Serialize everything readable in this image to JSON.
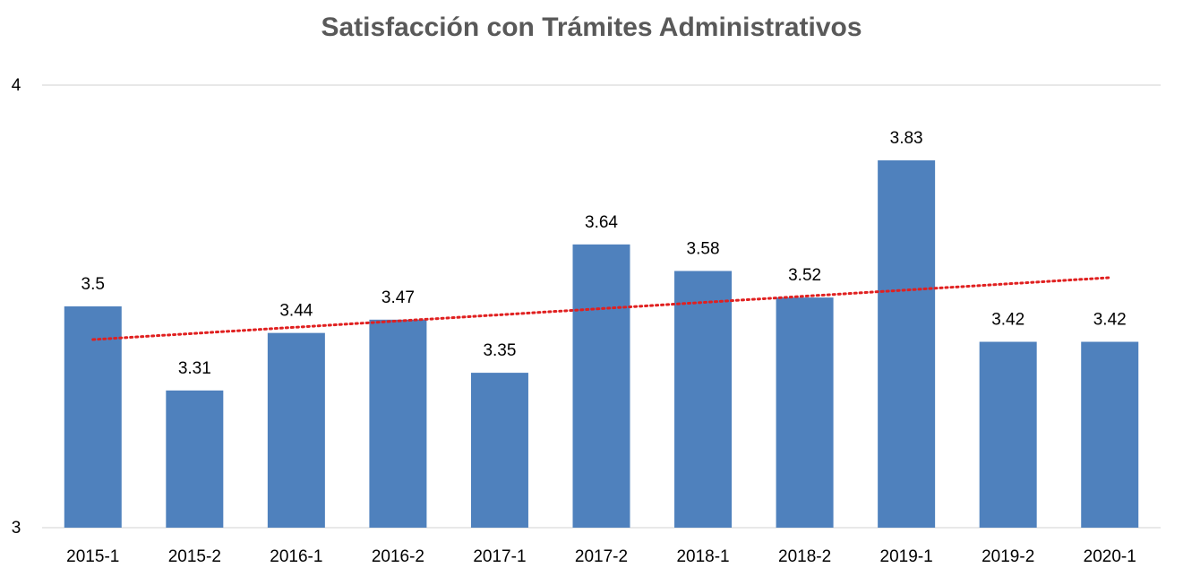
{
  "chart_data": {
    "type": "bar",
    "title": "Satisfacción con Trámites Administrativos",
    "categories": [
      "2015-1",
      "2015-2",
      "2016-1",
      "2016-2",
      "2017-1",
      "2017-2",
      "2018-1",
      "2018-2",
      "2019-1",
      "2019-2",
      "2020-1"
    ],
    "values": [
      3.5,
      3.31,
      3.44,
      3.47,
      3.35,
      3.64,
      3.58,
      3.52,
      3.83,
      3.42,
      3.42
    ],
    "value_labels": [
      "3.5",
      "3.31",
      "3.44",
      "3.47",
      "3.35",
      "3.64",
      "3.58",
      "3.52",
      "3.83",
      "3.42",
      "3.42"
    ],
    "ylim": [
      3,
      4
    ],
    "yticks": [
      3,
      4
    ],
    "ytick_labels": [
      "3",
      "4"
    ],
    "xlabel": "",
    "ylabel": "",
    "grid": true,
    "legend": "none",
    "trendline": {
      "type": "linear",
      "style": "dotted",
      "color": "#e02020",
      "start_value": 3.425,
      "end_value": 3.565
    },
    "colors": {
      "bar": "#4f81bd",
      "grid": "#d9d9d9",
      "title": "#595959",
      "trendline": "#e02020"
    }
  }
}
